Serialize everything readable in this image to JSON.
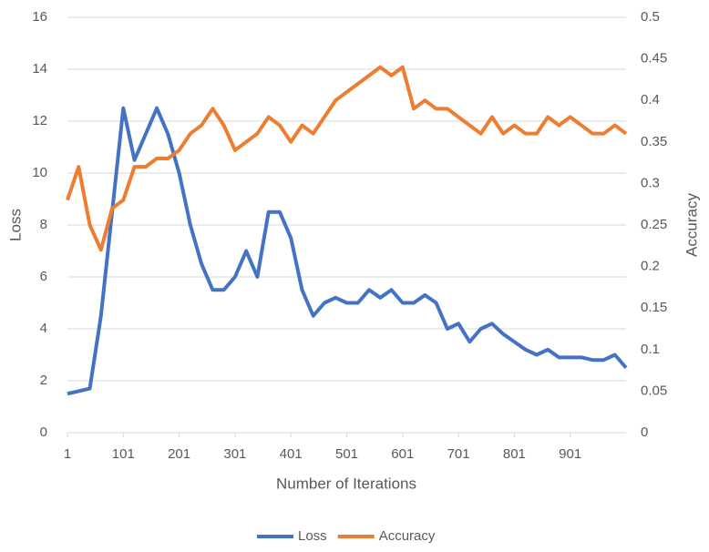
{
  "chart_data": {
    "type": "line",
    "x_label": "Number of Iterations",
    "y_label": "Loss",
    "y2_label": "Accuracy",
    "x": [
      1,
      21,
      41,
      61,
      81,
      101,
      121,
      141,
      161,
      181,
      201,
      221,
      241,
      261,
      281,
      301,
      321,
      341,
      361,
      381,
      401,
      421,
      441,
      461,
      481,
      501,
      521,
      541,
      561,
      581,
      601,
      621,
      641,
      661,
      681,
      701,
      721,
      741,
      761,
      781,
      801,
      821,
      841,
      861,
      881,
      901,
      921,
      941,
      961,
      981,
      1001
    ],
    "xlim": [
      1,
      1001
    ],
    "xticks": [
      1,
      101,
      201,
      301,
      401,
      501,
      601,
      701,
      801,
      901
    ],
    "ylim": [
      0,
      16
    ],
    "yticks": [
      0,
      2,
      4,
      6,
      8,
      10,
      12,
      14,
      16
    ],
    "y2lim": [
      0,
      0.5
    ],
    "y2ticks": [
      0,
      0.05,
      0.1,
      0.15,
      0.2,
      0.25,
      0.3,
      0.35,
      0.4,
      0.45,
      0.5
    ],
    "grid": true,
    "legend": "bottom",
    "series": [
      {
        "name": "Loss",
        "color": "#4472c4",
        "axis": "y",
        "values": [
          1.5,
          1.6,
          1.7,
          4.5,
          8.5,
          12.5,
          10.5,
          11.5,
          12.5,
          11.5,
          10,
          8,
          6.5,
          5.5,
          5.5,
          6,
          7,
          6,
          8.5,
          8.5,
          7.5,
          5.5,
          4.5,
          5,
          5.2,
          5,
          5,
          5.5,
          5.2,
          5.5,
          5,
          5,
          5.3,
          5,
          4,
          4.2,
          3.5,
          4,
          4.2,
          3.8,
          3.5,
          3.2,
          3,
          3.2,
          2.9,
          2.9,
          2.9,
          2.8,
          2.8,
          3,
          2.5
        ]
      },
      {
        "name": "Accuracy",
        "color": "#ed7d31",
        "axis": "y2",
        "values": [
          0.28,
          0.32,
          0.25,
          0.22,
          0.27,
          0.28,
          0.32,
          0.32,
          0.33,
          0.33,
          0.34,
          0.36,
          0.37,
          0.39,
          0.37,
          0.34,
          0.35,
          0.36,
          0.38,
          0.37,
          0.35,
          0.37,
          0.36,
          0.38,
          0.4,
          0.41,
          0.42,
          0.43,
          0.44,
          0.43,
          0.44,
          0.39,
          0.4,
          0.39,
          0.39,
          0.38,
          0.37,
          0.36,
          0.38,
          0.36,
          0.37,
          0.36,
          0.36,
          0.38,
          0.37,
          0.38,
          0.37,
          0.36,
          0.36,
          0.37,
          0.36
        ]
      }
    ]
  }
}
